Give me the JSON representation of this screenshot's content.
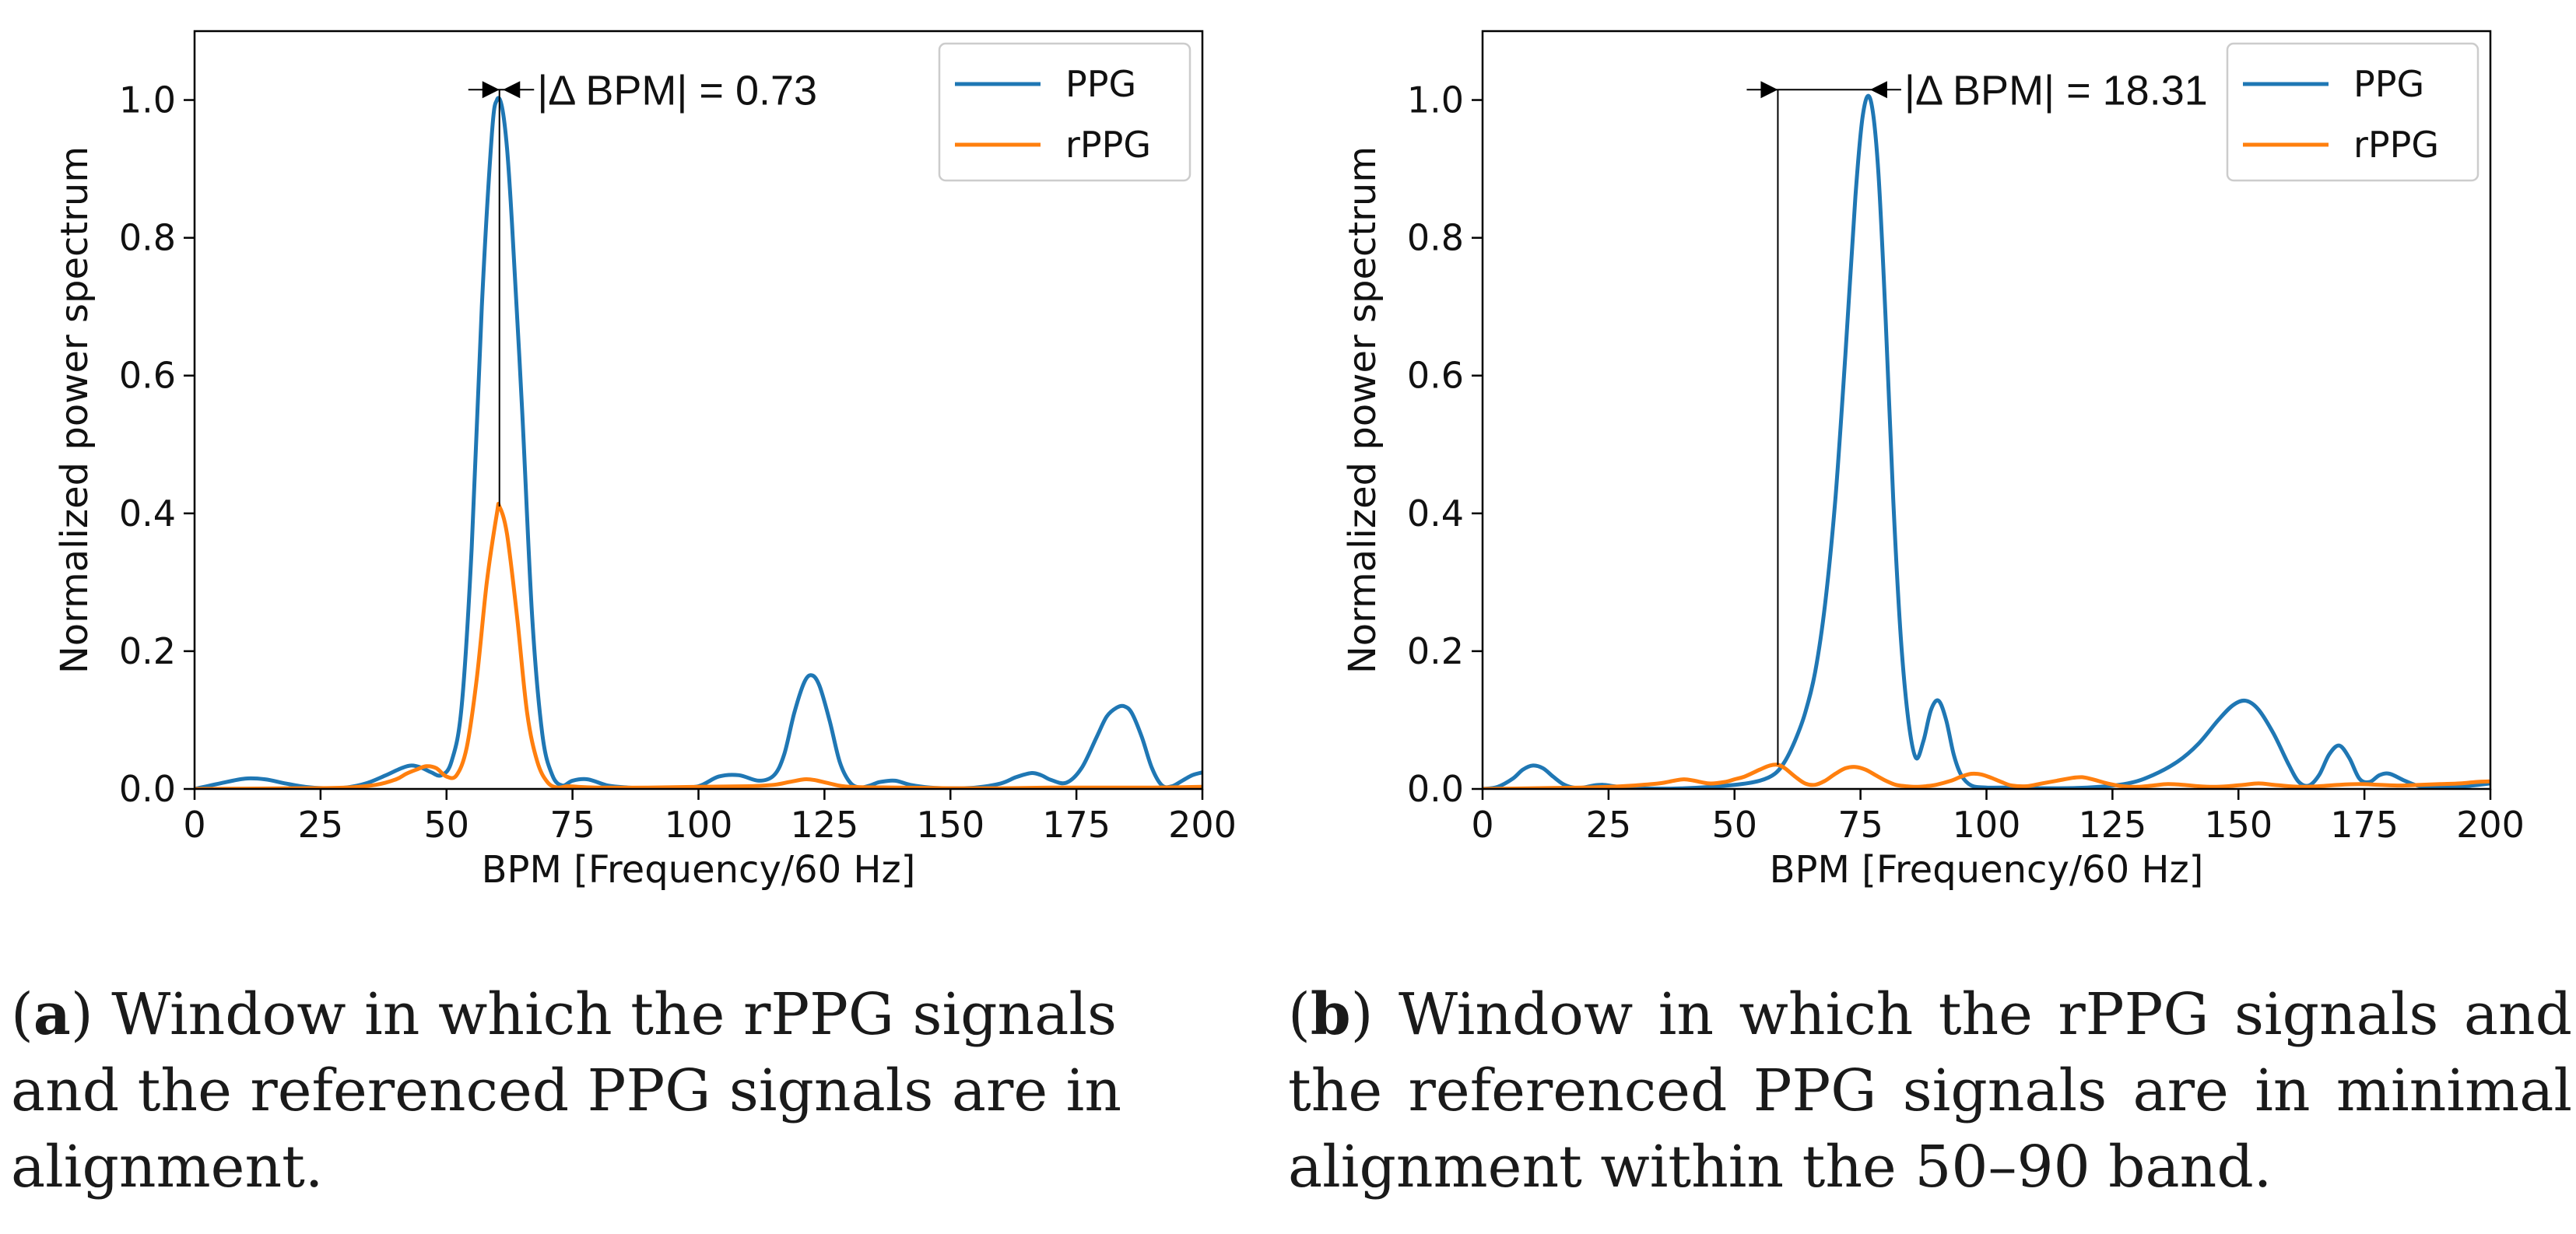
{
  "colors": {
    "ppg": "#1f77b4",
    "rppg": "#ff7f0e",
    "axis": "#000000"
  },
  "chart_data": [
    {
      "type": "line",
      "xlabel": "BPM [Frequency/60 Hz]",
      "ylabel": "Normalized power spectrum",
      "xlim": [
        0,
        200
      ],
      "ylim": [
        0,
        1.1
      ],
      "xticks": [
        0,
        25,
        50,
        75,
        100,
        125,
        150,
        175,
        200
      ],
      "yticks": [
        "0.0",
        "0.2",
        "0.4",
        "0.6",
        "0.8",
        "1.0"
      ],
      "legend": {
        "placement": "top-right",
        "entries": [
          "PPG",
          "rPPG"
        ]
      },
      "annotation": {
        "text": "|Δ BPM| = 0.73",
        "ppg_peak_bpm": 61.2,
        "rppg_peak_bpm": 60.5,
        "rppg_peak_value": 0.41
      },
      "series": [
        {
          "name": "PPG",
          "x": [
            0,
            5,
            10,
            14,
            18,
            22,
            26,
            30,
            34,
            38,
            41,
            43,
            45,
            47,
            49,
            51,
            53,
            55,
            57,
            59,
            60,
            61,
            62,
            63,
            65,
            67,
            69,
            71,
            73,
            75,
            78,
            82,
            86,
            90,
            95,
            100,
            104,
            108,
            112,
            115,
            117,
            119,
            121,
            122.5,
            124,
            126,
            128,
            130,
            132,
            134,
            136,
            139,
            142,
            146,
            150,
            155,
            160,
            163,
            166,
            168,
            170,
            173,
            176,
            179,
            181,
            183,
            184.5,
            186,
            188,
            190,
            192,
            194,
            196,
            198,
            200
          ],
          "values": [
            0,
            0.008,
            0.015,
            0.014,
            0.008,
            0.003,
            0.001,
            0.002,
            0.008,
            0.02,
            0.03,
            0.034,
            0.031,
            0.024,
            0.02,
            0.04,
            0.12,
            0.35,
            0.7,
            0.95,
            1.0,
            0.99,
            0.93,
            0.82,
            0.55,
            0.25,
            0.08,
            0.02,
            0.005,
            0.012,
            0.014,
            0.005,
            0.002,
            0.001,
            0.002,
            0.004,
            0.018,
            0.02,
            0.012,
            0.02,
            0.05,
            0.11,
            0.155,
            0.165,
            0.15,
            0.1,
            0.04,
            0.01,
            0.002,
            0.005,
            0.01,
            0.012,
            0.006,
            0.002,
            0.001,
            0.002,
            0.008,
            0.017,
            0.023,
            0.02,
            0.013,
            0.009,
            0.03,
            0.075,
            0.105,
            0.118,
            0.12,
            0.11,
            0.075,
            0.03,
            0.005,
            0.004,
            0.012,
            0.02,
            0.024
          ]
        },
        {
          "name": "rPPG",
          "x": [
            0,
            10,
            20,
            30,
            36,
            40,
            42,
            44,
            46,
            48,
            50,
            52,
            54,
            56,
            58,
            60,
            60.5,
            62,
            64,
            66,
            68,
            70,
            72,
            74,
            76,
            80,
            90,
            100,
            110,
            115,
            118,
            121,
            123,
            126,
            130,
            140,
            150,
            160,
            170,
            180,
            190,
            200
          ],
          "values": [
            0,
            0.0005,
            0.001,
            0.002,
            0.006,
            0.014,
            0.022,
            0.028,
            0.033,
            0.03,
            0.018,
            0.02,
            0.06,
            0.16,
            0.3,
            0.4,
            0.41,
            0.37,
            0.25,
            0.11,
            0.04,
            0.01,
            0.002,
            0.004,
            0.003,
            0.002,
            0.002,
            0.003,
            0.004,
            0.006,
            0.01,
            0.014,
            0.013,
            0.008,
            0.003,
            0.002,
            0.001,
            0.001,
            0.002,
            0.002,
            0.002,
            0.003
          ]
        }
      ]
    },
    {
      "type": "line",
      "xlabel": "BPM [Frequency/60 Hz]",
      "ylabel": "Normalized power spectrum",
      "xlim": [
        0,
        200
      ],
      "ylim": [
        0,
        1.1
      ],
      "xticks": [
        0,
        25,
        50,
        75,
        100,
        125,
        150,
        175,
        200
      ],
      "yticks": [
        "0.0",
        "0.2",
        "0.4",
        "0.6",
        "0.8",
        "1.0"
      ],
      "legend": {
        "placement": "top-right",
        "entries": [
          "PPG",
          "rPPG"
        ]
      },
      "annotation": {
        "text": "|Δ BPM| = 18.31",
        "ppg_peak_bpm": 76.9,
        "rppg_peak_bpm": 58.6,
        "rppg_peak_value": 0.035
      },
      "series": [
        {
          "name": "PPG",
          "x": [
            0,
            3,
            6,
            8,
            10,
            12,
            14,
            16,
            18,
            20,
            22,
            24,
            26,
            30,
            40,
            50,
            55,
            58,
            60,
            62,
            64,
            66,
            68,
            70,
            72,
            74,
            75.5,
            77,
            78.5,
            80,
            81.5,
            83,
            84.5,
            86,
            87.5,
            89,
            90.5,
            92,
            93.5,
            95,
            97,
            100,
            105,
            110,
            120,
            128,
            133,
            138,
            142,
            146,
            149,
            151.5,
            154,
            157,
            160,
            162,
            164,
            166,
            168,
            170,
            172,
            174,
            176,
            178,
            180,
            183,
            186,
            190,
            195,
            200
          ],
          "values": [
            0,
            0.003,
            0.015,
            0.028,
            0.034,
            0.03,
            0.018,
            0.007,
            0.002,
            0.002,
            0.005,
            0.006,
            0.004,
            0.001,
            0.001,
            0.006,
            0.012,
            0.022,
            0.04,
            0.07,
            0.11,
            0.17,
            0.27,
            0.42,
            0.63,
            0.86,
            0.98,
            1.0,
            0.9,
            0.68,
            0.42,
            0.22,
            0.1,
            0.045,
            0.07,
            0.115,
            0.128,
            0.1,
            0.05,
            0.02,
            0.005,
            0.002,
            0.002,
            0.001,
            0.002,
            0.008,
            0.02,
            0.04,
            0.065,
            0.1,
            0.122,
            0.128,
            0.115,
            0.08,
            0.035,
            0.01,
            0.005,
            0.02,
            0.05,
            0.063,
            0.045,
            0.015,
            0.01,
            0.02,
            0.022,
            0.012,
            0.004,
            0.002,
            0.004,
            0.008
          ]
        },
        {
          "name": "rPPG",
          "x": [
            0,
            10,
            20,
            25,
            30,
            35,
            38,
            40,
            42,
            45,
            48,
            50,
            52,
            55,
            57,
            58.6,
            60,
            62,
            64,
            66,
            68,
            70,
            72,
            74,
            76,
            78,
            80,
            82,
            84,
            86,
            88,
            90,
            93,
            95,
            97,
            99,
            101,
            103,
            105,
            108,
            111,
            114,
            117,
            119,
            121,
            124,
            127,
            130,
            133,
            136,
            139,
            142,
            145,
            148,
            151,
            154,
            157,
            160,
            163,
            166,
            170,
            174,
            178,
            182,
            186,
            190,
            194,
            197,
            200
          ],
          "values": [
            0,
            0.001,
            0.002,
            0.003,
            0.005,
            0.008,
            0.012,
            0.014,
            0.012,
            0.008,
            0.01,
            0.014,
            0.018,
            0.028,
            0.034,
            0.035,
            0.03,
            0.018,
            0.008,
            0.006,
            0.012,
            0.022,
            0.03,
            0.032,
            0.028,
            0.02,
            0.012,
            0.006,
            0.004,
            0.003,
            0.004,
            0.006,
            0.012,
            0.018,
            0.022,
            0.021,
            0.016,
            0.01,
            0.005,
            0.004,
            0.008,
            0.012,
            0.016,
            0.017,
            0.014,
            0.008,
            0.004,
            0.003,
            0.005,
            0.007,
            0.006,
            0.004,
            0.003,
            0.004,
            0.006,
            0.008,
            0.006,
            0.004,
            0.003,
            0.004,
            0.006,
            0.007,
            0.006,
            0.005,
            0.006,
            0.007,
            0.008,
            0.01,
            0.011
          ]
        }
      ]
    }
  ],
  "captions": [
    {
      "label": "a",
      "text": ") Window in which the rPPG signals and the referenced PPG signals are in alignment."
    },
    {
      "label": "b",
      "text": ") Window in which the rPPG signals and the referenced PPG signals are in minimal alignment within the 50–90 band."
    }
  ]
}
